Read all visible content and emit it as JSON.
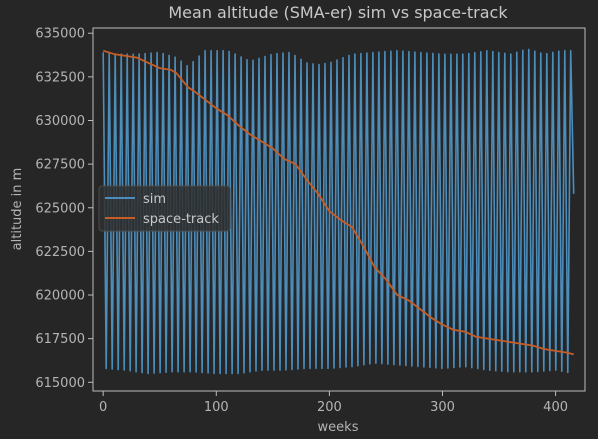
{
  "chart_data": {
    "type": "line",
    "title": "Mean altitude (SMA-er) sim vs space-track",
    "xlabel": "weeks",
    "ylabel": "altitude in m",
    "xlim": [
      -9,
      426
    ],
    "ylim": [
      614500,
      635300
    ],
    "x_ticks": [
      0,
      100,
      200,
      300,
      400
    ],
    "y_ticks": [
      615000,
      617500,
      620000,
      622500,
      625000,
      627500,
      630000,
      632500,
      635000
    ],
    "x_tick_labels": [
      "0",
      "100",
      "200",
      "300",
      "400"
    ],
    "y_tick_labels": [
      "615000",
      "617500",
      "620000",
      "622500",
      "625000",
      "627500",
      "630000",
      "632500",
      "635000"
    ],
    "grid": false,
    "legend_position": "center-left",
    "colors": {
      "background": "#262626",
      "axes_face": "#262626",
      "spine": "#bcbcbc",
      "text": "#b4b4b4"
    },
    "series": [
      {
        "name": "sim",
        "color": "#4c8dbb",
        "kind": "oscillation",
        "x_range": [
          0,
          416
        ],
        "period_weeks": 5.3,
        "start_phase": "high",
        "final_value": 625800,
        "upper_envelope": [
          [
            0,
            633900
          ],
          [
            10,
            633800
          ],
          [
            30,
            633800
          ],
          [
            50,
            633900
          ],
          [
            65,
            633600
          ],
          [
            75,
            633100
          ],
          [
            90,
            634000
          ],
          [
            110,
            634000
          ],
          [
            130,
            633400
          ],
          [
            150,
            633800
          ],
          [
            165,
            633900
          ],
          [
            180,
            633300
          ],
          [
            190,
            633200
          ],
          [
            200,
            633300
          ],
          [
            220,
            633800
          ],
          [
            240,
            633900
          ],
          [
            260,
            634000
          ],
          [
            280,
            633900
          ],
          [
            300,
            633800
          ],
          [
            320,
            633800
          ],
          [
            340,
            634000
          ],
          [
            360,
            633800
          ],
          [
            375,
            634100
          ],
          [
            390,
            633800
          ],
          [
            405,
            634000
          ],
          [
            416,
            634000
          ]
        ],
        "lower_envelope": [
          [
            0,
            615800
          ],
          [
            20,
            615700
          ],
          [
            40,
            615500
          ],
          [
            60,
            615600
          ],
          [
            80,
            615600
          ],
          [
            100,
            615500
          ],
          [
            120,
            615500
          ],
          [
            140,
            615700
          ],
          [
            160,
            615700
          ],
          [
            180,
            615800
          ],
          [
            200,
            615800
          ],
          [
            220,
            615900
          ],
          [
            240,
            616100
          ],
          [
            260,
            616000
          ],
          [
            280,
            615900
          ],
          [
            300,
            615800
          ],
          [
            320,
            615900
          ],
          [
            340,
            615700
          ],
          [
            360,
            615600
          ],
          [
            380,
            615600
          ],
          [
            400,
            615700
          ],
          [
            416,
            615500
          ]
        ]
      },
      {
        "name": "space-track",
        "color": "#c75d26",
        "kind": "line",
        "points": [
          [
            0,
            634000
          ],
          [
            10,
            633800
          ],
          [
            20,
            633700
          ],
          [
            30,
            633600
          ],
          [
            40,
            633300
          ],
          [
            50,
            633000
          ],
          [
            60,
            632900
          ],
          [
            65,
            632700
          ],
          [
            70,
            632300
          ],
          [
            75,
            631900
          ],
          [
            80,
            631700
          ],
          [
            90,
            631200
          ],
          [
            100,
            630700
          ],
          [
            110,
            630300
          ],
          [
            120,
            629700
          ],
          [
            130,
            629200
          ],
          [
            140,
            628800
          ],
          [
            150,
            628400
          ],
          [
            160,
            627800
          ],
          [
            170,
            627500
          ],
          [
            180,
            626600
          ],
          [
            190,
            625800
          ],
          [
            200,
            624800
          ],
          [
            210,
            624300
          ],
          [
            220,
            623900
          ],
          [
            230,
            622800
          ],
          [
            240,
            621600
          ],
          [
            250,
            620900
          ],
          [
            260,
            620000
          ],
          [
            270,
            619700
          ],
          [
            280,
            619200
          ],
          [
            290,
            618700
          ],
          [
            300,
            618300
          ],
          [
            310,
            618000
          ],
          [
            320,
            617900
          ],
          [
            330,
            617600
          ],
          [
            340,
            617500
          ],
          [
            350,
            617400
          ],
          [
            360,
            617300
          ],
          [
            370,
            617200
          ],
          [
            380,
            617100
          ],
          [
            390,
            616900
          ],
          [
            400,
            616800
          ],
          [
            410,
            616700
          ],
          [
            416,
            616600
          ]
        ]
      }
    ]
  }
}
